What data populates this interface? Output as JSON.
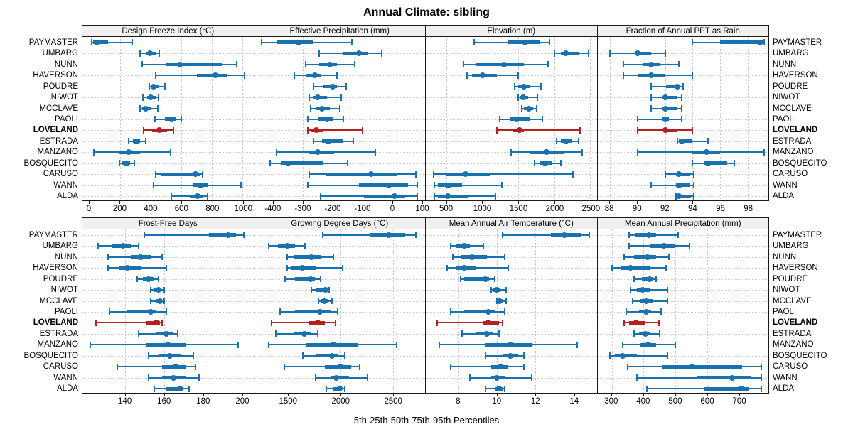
{
  "title": "Annual Climate: sibling",
  "caption": "5th-25th-50th-75th-95th Percentiles",
  "percentile_legend": [
    "5th",
    "25th",
    "50th",
    "75th",
    "95th"
  ],
  "sites": [
    "PAYMASTER",
    "UMBARG",
    "NUNN",
    "HAVERSON",
    "POUDRE",
    "NIWOT",
    "MCCLAVE",
    "PAOLI",
    "LOVELAND",
    "ESTRADA",
    "MANZANO",
    "BOSQUECITO",
    "CARUSO",
    "WANN",
    "ALDA"
  ],
  "highlight_site": "LOVELAND",
  "colors": {
    "series": "#1a71b0",
    "highlight": "#b22222",
    "strip_bg": "#f0f0f0",
    "panel_border": "#1a1a1a",
    "grid": "#c8c8c8"
  },
  "chart_data": [
    {
      "type": "dotplot-interval",
      "row": 0,
      "title": "Design Freeze Index (°C)",
      "range": [
        -46,
        1070
      ],
      "ticks": [
        0,
        200,
        400,
        600,
        800,
        1000
      ],
      "values": {
        "PAYMASTER": [
          15,
          25,
          45,
          120,
          280
        ],
        "UMBARG": [
          330,
          370,
          395,
          430,
          455
        ],
        "NUNN": [
          345,
          495,
          590,
          865,
          960
        ],
        "HAVERSON": [
          430,
          700,
          820,
          900,
          1010
        ],
        "POUDRE": [
          390,
          400,
          420,
          450,
          490
        ],
        "NIWOT": [
          350,
          375,
          400,
          430,
          450
        ],
        "MCCLAVE": [
          330,
          345,
          365,
          400,
          445
        ],
        "PAOLI": [
          425,
          490,
          535,
          560,
          600
        ],
        "LOVELAND": [
          355,
          410,
          455,
          505,
          550
        ],
        "ESTRADA": [
          255,
          285,
          305,
          330,
          365
        ],
        "MANZANO": [
          30,
          195,
          255,
          330,
          530
        ],
        "BOSQUECITO": [
          195,
          215,
          240,
          265,
          295
        ],
        "CARUSO": [
          430,
          470,
          690,
          720,
          740
        ],
        "WANN": [
          420,
          680,
          725,
          775,
          990
        ],
        "ALDA": [
          535,
          655,
          705,
          745,
          770
        ]
      }
    },
    {
      "type": "dotplot-interval",
      "row": 0,
      "title": "Effective Precipitation (mm)",
      "range": [
        -465,
        112
      ],
      "ticks": [
        -400,
        -300,
        -200,
        -100,
        0,
        100
      ],
      "values": {
        "PAYMASTER": [
          -440,
          -390,
          -315,
          -265,
          -135
        ],
        "UMBARG": [
          -245,
          -165,
          -110,
          -80,
          -35
        ],
        "NUNN": [
          -290,
          -245,
          -210,
          -185,
          -125
        ],
        "HAVERSON": [
          -330,
          -290,
          -260,
          -240,
          -185
        ],
        "POUDRE": [
          -265,
          -230,
          -200,
          -185,
          -155
        ],
        "NIWOT": [
          -280,
          -265,
          -250,
          -220,
          -170
        ],
        "MCCLAVE": [
          -275,
          -255,
          -235,
          -210,
          -175
        ],
        "PAOLI": [
          -285,
          -250,
          -220,
          -200,
          -165
        ],
        "LOVELAND": [
          -285,
          -275,
          -255,
          -230,
          -100
        ],
        "ESTRADA": [
          -265,
          -235,
          -215,
          -165,
          -130
        ],
        "MANZANO": [
          -390,
          -280,
          -250,
          -195,
          -55
        ],
        "BOSQUECITO": [
          -410,
          -375,
          -350,
          -230,
          -150
        ],
        "CARUSO": [
          -280,
          -225,
          -70,
          15,
          80
        ],
        "WANN": [
          -285,
          -110,
          -10,
          55,
          85
        ],
        "ALDA": [
          -240,
          -95,
          10,
          45,
          85
        ]
      }
    },
    {
      "type": "dotplot-interval",
      "row": 0,
      "title": "Elevation (m)",
      "range": [
        210,
        2590
      ],
      "ticks": [
        500,
        1000,
        1500,
        2000,
        2500
      ],
      "values": {
        "PAYMASTER": [
          880,
          1360,
          1600,
          1790,
          1930
        ],
        "UMBARG": [
          2000,
          2090,
          2160,
          2340,
          2480
        ],
        "NUNN": [
          730,
          900,
          1300,
          1580,
          1910
        ],
        "HAVERSON": [
          780,
          850,
          1000,
          1200,
          1500
        ],
        "POUDRE": [
          1450,
          1500,
          1580,
          1650,
          1810
        ],
        "NIWOT": [
          1500,
          1530,
          1570,
          1640,
          1760
        ],
        "MCCLAVE": [
          1550,
          1580,
          1640,
          1700,
          1750
        ],
        "PAOLI": [
          1240,
          1380,
          1480,
          1650,
          1830
        ],
        "LOVELAND": [
          1200,
          1430,
          1520,
          1580,
          2360
        ],
        "ESTRADA": [
          2030,
          2090,
          2160,
          2240,
          2340
        ],
        "MANZANO": [
          1400,
          1650,
          1890,
          2130,
          2390
        ],
        "BOSQUECITO": [
          1720,
          1790,
          1870,
          1960,
          2090
        ],
        "CARUSO": [
          320,
          500,
          760,
          1100,
          2260
        ],
        "WANN": [
          330,
          380,
          530,
          710,
          1270
        ],
        "ALDA": [
          330,
          380,
          520,
          790,
          1180
        ]
      }
    },
    {
      "type": "dotplot-interval",
      "row": 0,
      "title": "Fraction of Annual PPT as Rain",
      "range": [
        87.1,
        99.5
      ],
      "ticks": [
        88,
        90,
        92,
        94,
        96,
        98
      ],
      "values": {
        "PAYMASTER": [
          94,
          96,
          98.9,
          99.1,
          99.2
        ],
        "UMBARG": [
          88,
          89.9,
          90,
          91,
          92
        ],
        "NUNN": [
          89,
          90.4,
          91,
          91.6,
          93
        ],
        "HAVERSON": [
          89,
          90,
          91,
          92,
          94
        ],
        "POUDRE": [
          91,
          92.1,
          92.9,
          93.1,
          93.3
        ],
        "NIWOT": [
          91,
          91.8,
          92,
          92.9,
          93.2
        ],
        "MCCLAVE": [
          91,
          91.8,
          92,
          92.9,
          93.2
        ],
        "PAOLI": [
          90,
          91.8,
          92,
          92.3,
          93.2
        ],
        "LOVELAND": [
          90,
          91.9,
          92,
          92.9,
          94
        ],
        "ESTRADA": [
          92.9,
          93,
          93.2,
          94,
          95.1
        ],
        "MANZANO": [
          90,
          94,
          95,
          96,
          99.2
        ],
        "BOSQUECITO": [
          94,
          94.8,
          95.1,
          96.5,
          97
        ],
        "CARUSO": [
          92,
          92.8,
          93,
          93.8,
          94.1
        ],
        "WANN": [
          91,
          92.8,
          93,
          93.8,
          94.1
        ],
        "ALDA": [
          92.8,
          92.9,
          93,
          93.9,
          94.1
        ]
      }
    },
    {
      "type": "dotplot-interval",
      "row": 1,
      "title": "Frost-Free Days",
      "range": [
        118,
        206
      ],
      "ticks": [
        140,
        160,
        180,
        200
      ],
      "values": {
        "PAYMASTER": [
          150,
          183,
          193,
          197,
          201
        ],
        "UMBARG": [
          126,
          133,
          139,
          143,
          147
        ],
        "NUNN": [
          131,
          143,
          148,
          153,
          159
        ],
        "HAVERSON": [
          131,
          137,
          141,
          148,
          161
        ],
        "POUDRE": [
          146,
          149,
          152,
          155,
          157
        ],
        "NIWOT": [
          153,
          155,
          157,
          158,
          160
        ],
        "MCCLAVE": [
          153,
          156,
          158,
          159,
          160
        ],
        "PAOLI": [
          132,
          141,
          153,
          156,
          161
        ],
        "LOVELAND": [
          125,
          151,
          156,
          158,
          159
        ],
        "ESTRADA": [
          147,
          156,
          161,
          165,
          167
        ],
        "MANZANO": [
          122,
          151,
          162,
          171,
          198
        ],
        "BOSQUECITO": [
          152,
          157,
          163,
          169,
          175
        ],
        "CARUSO": [
          136,
          159,
          166,
          171,
          176
        ],
        "WANN": [
          152,
          159,
          165,
          171,
          178
        ],
        "ALDA": [
          155,
          161,
          168,
          170,
          173
        ]
      }
    },
    {
      "type": "dotplot-interval",
      "row": 1,
      "title": "Growing Degree Days (°C)",
      "range": [
        1170,
        2810
      ],
      "ticks": [
        1500,
        2000,
        2500
      ],
      "values": {
        "PAYMASTER": [
          1830,
          2280,
          2460,
          2620,
          2720
        ],
        "UMBARG": [
          1310,
          1400,
          1490,
          1560,
          1660
        ],
        "NUNN": [
          1490,
          1550,
          1720,
          1810,
          1930
        ],
        "HAVERSON": [
          1490,
          1520,
          1630,
          1760,
          2020
        ],
        "POUDRE": [
          1470,
          1560,
          1715,
          1750,
          1810
        ],
        "NIWOT": [
          1720,
          1760,
          1855,
          1870,
          1890
        ],
        "MCCLAVE": [
          1790,
          1810,
          1840,
          1880,
          1920
        ],
        "PAOLI": [
          1420,
          1560,
          1800,
          1900,
          1970
        ],
        "LOVELAND": [
          1340,
          1690,
          1780,
          1850,
          1950
        ],
        "ESTRADA": [
          1380,
          1550,
          1650,
          1720,
          1780
        ],
        "MANZANO": [
          1310,
          1670,
          1930,
          2160,
          2540
        ],
        "BOSQUECITO": [
          1640,
          1770,
          1920,
          1970,
          2040
        ],
        "CARUSO": [
          1460,
          1850,
          2000,
          2100,
          2180
        ],
        "WANN": [
          1760,
          1900,
          1960,
          2080,
          2260
        ],
        "ALDA": [
          1860,
          1930,
          1990,
          2010,
          2040
        ]
      }
    },
    {
      "type": "dotplot-interval",
      "row": 1,
      "title": "Mean Annual Air Temperature (°C)",
      "range": [
        6.3,
        15.2
      ],
      "ticks": [
        8,
        10,
        12,
        14
      ],
      "values": {
        "PAYMASTER": [
          10.3,
          12.8,
          13.5,
          14.4,
          14.8
        ],
        "UMBARG": [
          7.6,
          7.9,
          8.3,
          8.6,
          9.3
        ],
        "NUNN": [
          7.7,
          8.1,
          8.7,
          9.5,
          10.4
        ],
        "HAVERSON": [
          7.4,
          7.9,
          8.3,
          8.9,
          10.6
        ],
        "POUDRE": [
          8.1,
          8.3,
          9.4,
          9.6,
          9.9
        ],
        "NIWOT": [
          9.7,
          9.8,
          10.0,
          10.2,
          10.5
        ],
        "MCCLAVE": [
          10.0,
          10.05,
          10.15,
          10.35,
          10.5
        ],
        "PAOLI": [
          7.6,
          8.3,
          9.55,
          9.9,
          10.4
        ],
        "LOVELAND": [
          6.9,
          9.3,
          9.55,
          10.1,
          10.3
        ],
        "ESTRADA": [
          8.2,
          8.9,
          9.5,
          9.8,
          10.1
        ],
        "MANZANO": [
          7.0,
          9.4,
          10.7,
          11.8,
          14.2
        ],
        "BOSQUECITO": [
          9.4,
          10.3,
          10.7,
          11.1,
          11.4
        ],
        "CARUSO": [
          7.6,
          9.7,
          10.2,
          10.6,
          11.4
        ],
        "WANN": [
          8.6,
          9.7,
          10.0,
          10.4,
          11.8
        ],
        "ALDA": [
          9.4,
          9.9,
          10.1,
          10.3,
          10.4
        ]
      }
    },
    {
      "type": "dotplot-interval",
      "row": 1,
      "title": "Mean Annual Precipitation (mm)",
      "range": [
        255,
        793
      ],
      "ticks": [
        300,
        400,
        500,
        600,
        700
      ],
      "values": {
        "PAYMASTER": [
          355,
          375,
          418,
          440,
          510
        ],
        "UMBARG": [
          355,
          420,
          465,
          500,
          545
        ],
        "NUNN": [
          340,
          370,
          412,
          440,
          480
        ],
        "HAVERSON": [
          300,
          330,
          360,
          420,
          470
        ],
        "POUDRE": [
          370,
          395,
          420,
          430,
          440
        ],
        "NIWOT": [
          360,
          380,
          397,
          420,
          475
        ],
        "MCCLAVE": [
          365,
          390,
          408,
          430,
          475
        ],
        "PAOLI": [
          345,
          385,
          408,
          425,
          455
        ],
        "LOVELAND": [
          340,
          355,
          378,
          405,
          448
        ],
        "ESTRADA": [
          370,
          385,
          405,
          420,
          450
        ],
        "MANZANO": [
          335,
          390,
          415,
          440,
          500
        ],
        "BOSQUECITO": [
          295,
          310,
          335,
          380,
          475
        ],
        "CARUSO": [
          350,
          460,
          553,
          710,
          770
        ],
        "WANN": [
          380,
          570,
          678,
          740,
          770
        ],
        "ALDA": [
          410,
          590,
          708,
          730,
          770
        ]
      }
    }
  ]
}
